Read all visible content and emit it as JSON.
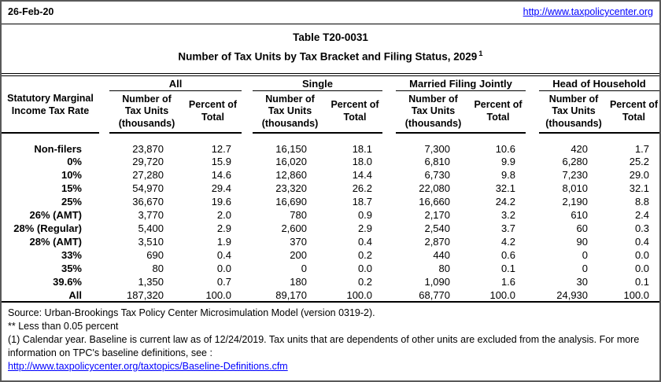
{
  "header": {
    "date": "26-Feb-20",
    "site_url": "http://www.taxpolicycenter.org"
  },
  "title": {
    "table_number": "Table T20-0031",
    "subtitle": "Number of Tax Units by Tax Bracket and Filing Status, 2029",
    "footnote_marker": "1"
  },
  "table": {
    "row_header": "Statutory Marginal\nIncome Tax Rate",
    "groups": [
      "All",
      "Single",
      "Married Filing Jointly",
      "Head of Household"
    ],
    "subcolumns": {
      "number": "Number of\nTax Units\n(thousands)",
      "percent": "Percent of\nTotal"
    },
    "rows": [
      {
        "label": "Non-filers",
        "values": [
          "23,870",
          "12.7",
          "16,150",
          "18.1",
          "7,300",
          "10.6",
          "420",
          "1.7"
        ]
      },
      {
        "label": "0%",
        "values": [
          "29,720",
          "15.9",
          "16,020",
          "18.0",
          "6,810",
          "9.9",
          "6,280",
          "25.2"
        ]
      },
      {
        "label": "10%",
        "values": [
          "27,280",
          "14.6",
          "12,860",
          "14.4",
          "6,730",
          "9.8",
          "7,230",
          "29.0"
        ]
      },
      {
        "label": "15%",
        "values": [
          "54,970",
          "29.4",
          "23,320",
          "26.2",
          "22,080",
          "32.1",
          "8,010",
          "32.1"
        ]
      },
      {
        "label": "25%",
        "values": [
          "36,670",
          "19.6",
          "16,690",
          "18.7",
          "16,660",
          "24.2",
          "2,190",
          "8.8"
        ]
      },
      {
        "label": "26% (AMT)",
        "values": [
          "3,770",
          "2.0",
          "780",
          "0.9",
          "2,170",
          "3.2",
          "610",
          "2.4"
        ]
      },
      {
        "label": "28% (Regular)",
        "values": [
          "5,400",
          "2.9",
          "2,600",
          "2.9",
          "2,540",
          "3.7",
          "60",
          "0.3"
        ]
      },
      {
        "label": "28% (AMT)",
        "values": [
          "3,510",
          "1.9",
          "370",
          "0.4",
          "2,870",
          "4.2",
          "90",
          "0.4"
        ]
      },
      {
        "label": "33%",
        "values": [
          "690",
          "0.4",
          "200",
          "0.2",
          "440",
          "0.6",
          "0",
          "0.0"
        ]
      },
      {
        "label": "35%",
        "values": [
          "80",
          "0.0",
          "0",
          "0.0",
          "80",
          "0.1",
          "0",
          "0.0"
        ]
      },
      {
        "label": "39.6%",
        "values": [
          "1,350",
          "0.7",
          "180",
          "0.2",
          "1,090",
          "1.6",
          "30",
          "0.1"
        ]
      },
      {
        "label": "All",
        "values": [
          "187,320",
          "100.0",
          "89,170",
          "100.0",
          "68,770",
          "100.0",
          "24,930",
          "100.0"
        ]
      }
    ]
  },
  "footer": {
    "source": "Source: Urban-Brookings Tax Policy Center Microsimulation Model (version 0319-2).",
    "less_than_note": "** Less than 0.05 percent",
    "footnote_1": "(1) Calendar year. Baseline is current law as of 12/24/2019. Tax units that are dependents of other units are excluded from the analysis. For more information on TPC's baseline definitions, see :",
    "baseline_link": "http://www.taxpolicycenter.org/taxtopics/Baseline-Definitions.cfm"
  },
  "colors": {
    "link_blue": "#0000ff",
    "text": "#000000",
    "page_border": "#595959"
  }
}
